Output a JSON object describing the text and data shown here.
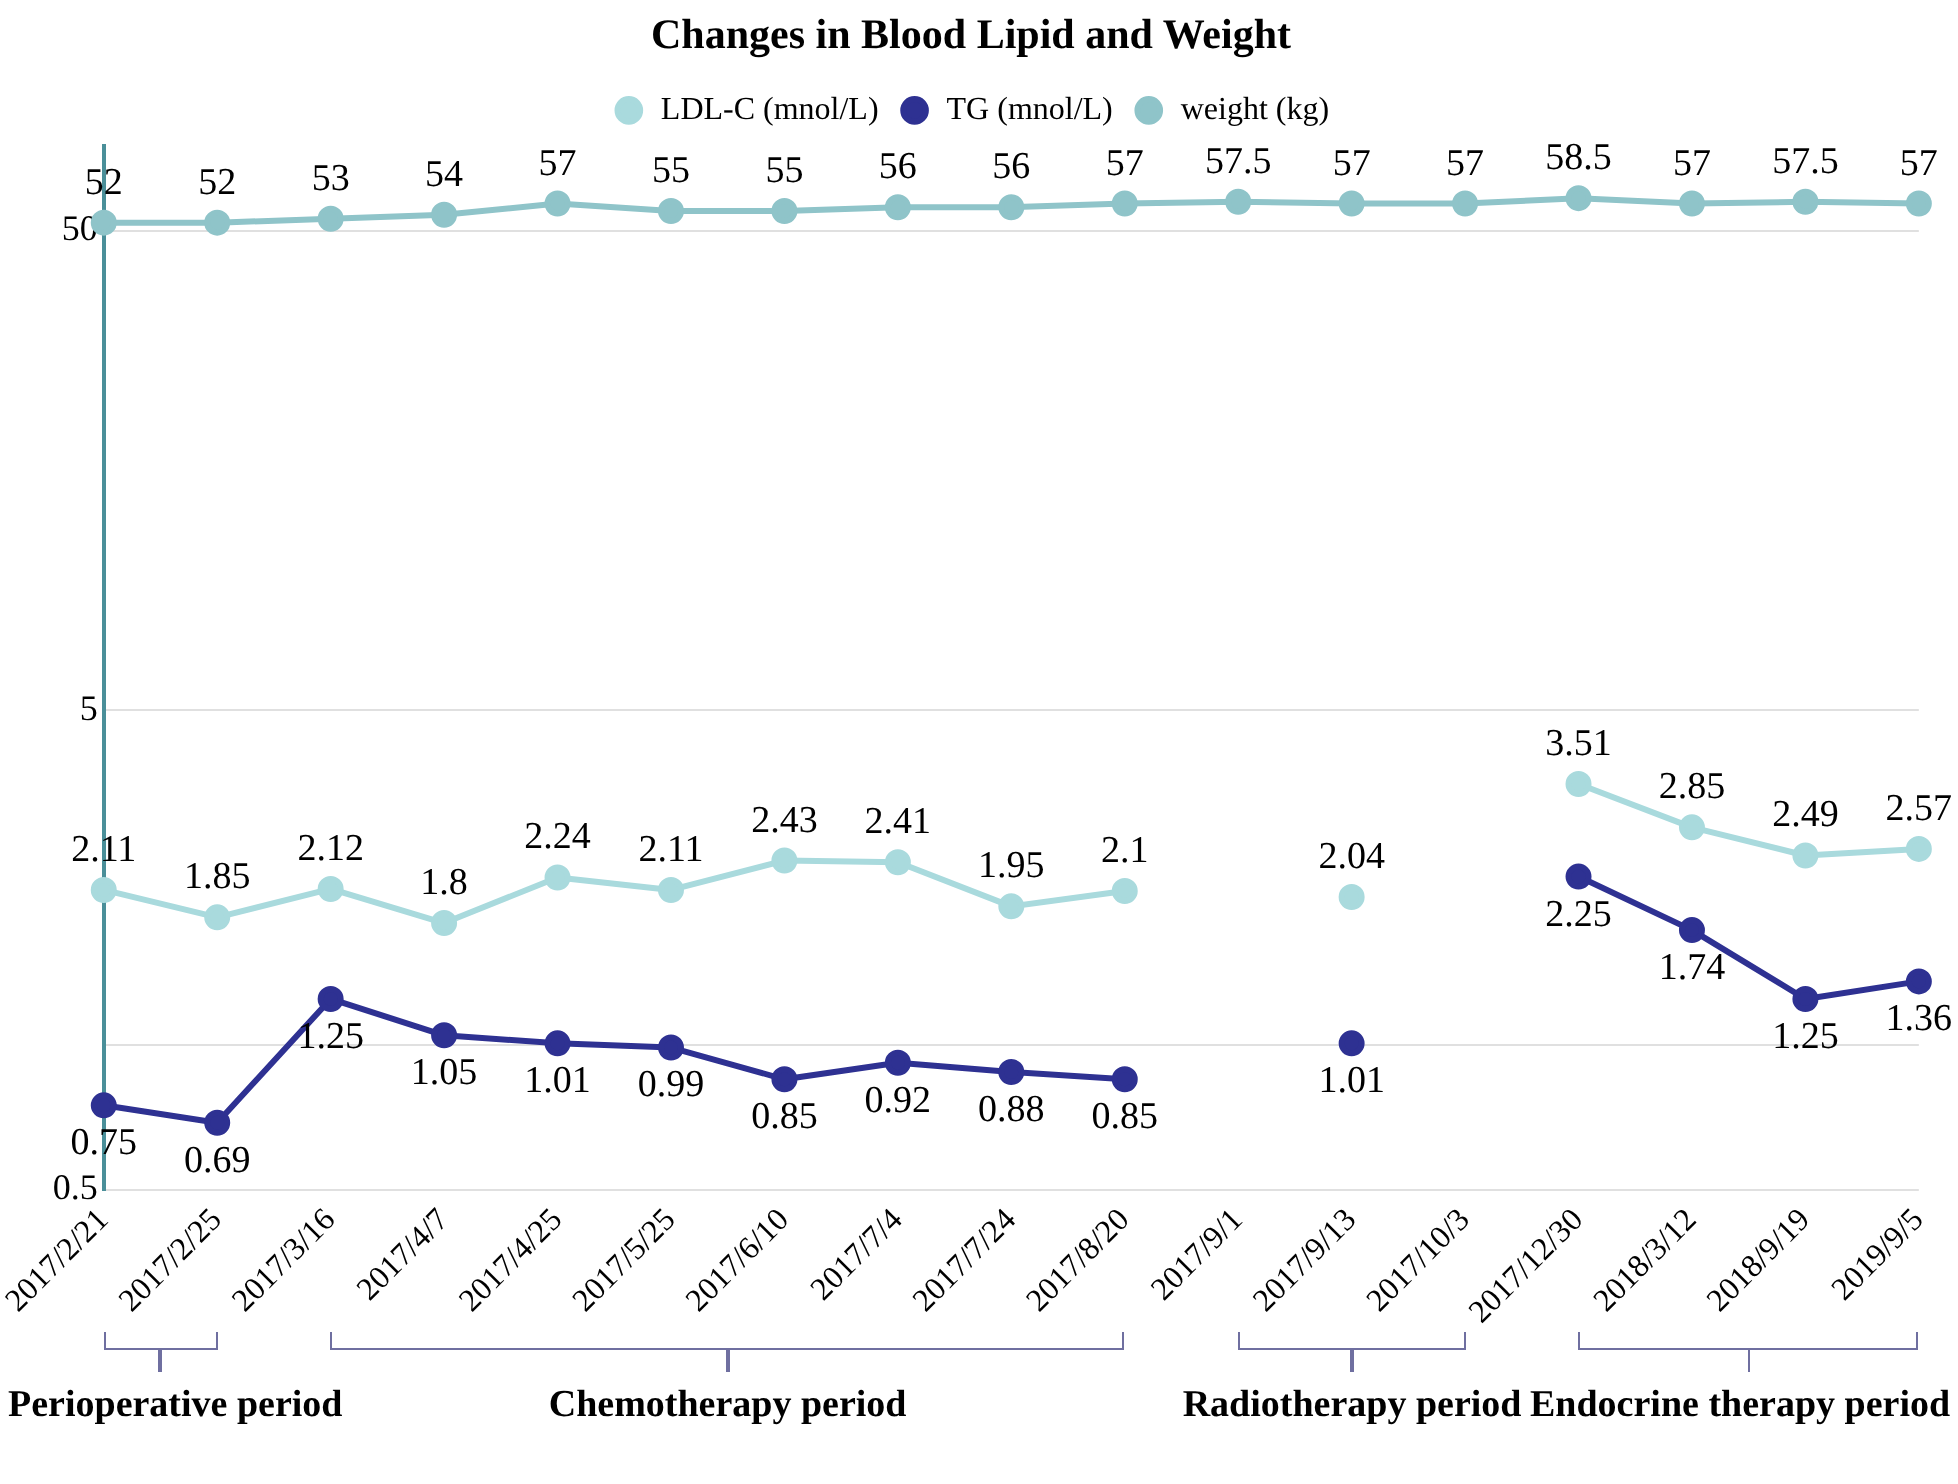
{
  "chart_data": {
    "type": "line",
    "title": "Changes in Blood Lipid and Weight",
    "categories": [
      "2017/2/21",
      "2017/2/25",
      "2017/3/16",
      "2017/4/7",
      "2017/4/25",
      "2017/5/25",
      "2017/6/10",
      "2017/7/4",
      "2017/7/24",
      "2017/8/20",
      "2017/9/1",
      "2017/9/13",
      "2017/10/3",
      "2017/12/30",
      "2018/3/12",
      "2018/9/19",
      "2019/9/5"
    ],
    "series": [
      {
        "name": "LDL-C (mnol/L)",
        "color": "#a9dadd",
        "values": [
          2.11,
          1.85,
          2.12,
          1.8,
          2.24,
          2.11,
          2.43,
          2.41,
          1.95,
          2.1,
          null,
          2.04,
          null,
          3.51,
          2.85,
          2.49,
          2.57
        ]
      },
      {
        "name": "TG (mnol/L)",
        "color": "#2e3192",
        "values": [
          0.75,
          0.69,
          1.25,
          1.05,
          1.01,
          0.99,
          0.85,
          0.92,
          0.88,
          0.85,
          null,
          1.01,
          null,
          2.25,
          1.74,
          1.25,
          1.36
        ]
      },
      {
        "name": "weight (kg)",
        "color": "#8fc4c9",
        "values": [
          52,
          52,
          53,
          54,
          57,
          55,
          55,
          56,
          56,
          57,
          57.5,
          57,
          57,
          58.5,
          57,
          57.5,
          57
        ]
      }
    ],
    "log": "y",
    "ylim": [
      0.5,
      75
    ],
    "yticks": [
      0.5,
      {
        "value": 1,
        "label": null
      },
      5,
      50
    ],
    "grid": "y",
    "legend": "top",
    "marker": "circle",
    "line_style": "solid",
    "data_labels": true,
    "annotations": [
      "Perioperative period",
      "Chemotherapy period",
      "Radiotherapy period",
      "Endocrine therapy period"
    ]
  }
}
